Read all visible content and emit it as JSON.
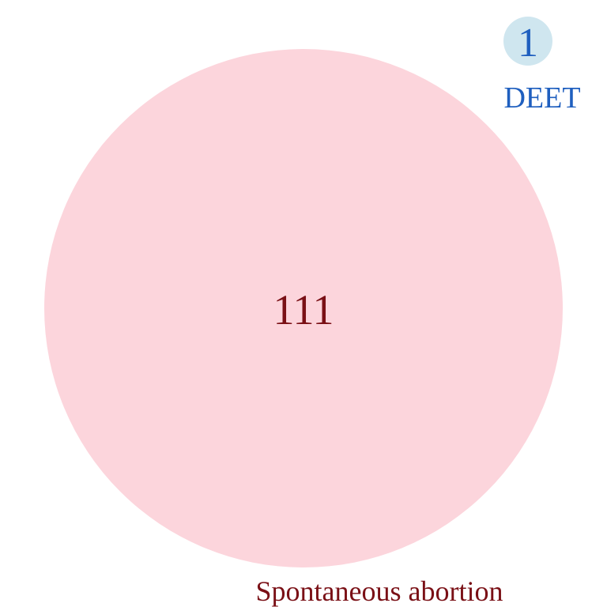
{
  "sets": [
    {
      "label": "Spontaneous abortion",
      "count": "111",
      "fill_color": "#fcd5dc",
      "text_color": "#7a1016"
    },
    {
      "label": "DEET",
      "count": "1",
      "fill_color": "#cfe6ef",
      "text_color": "#1f5fbf"
    }
  ]
}
